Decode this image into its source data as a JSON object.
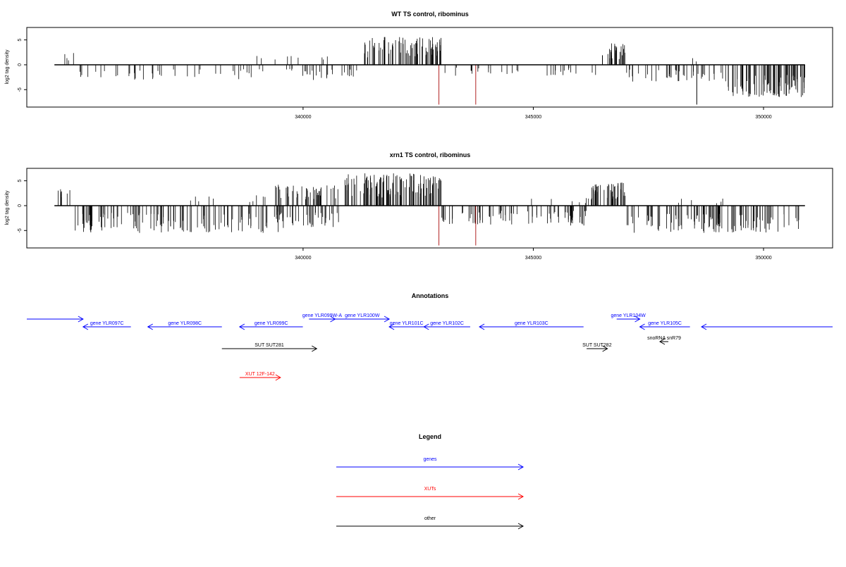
{
  "chart_data": [
    {
      "type": "bar",
      "title": "WT TS control, ribominus",
      "ylabel": "log2 tag density",
      "xlabel": "",
      "xlim": [
        334000,
        351500
      ],
      "ylim": [
        -8.5,
        7.5
      ],
      "x_ticks": [
        340000,
        345000,
        350000
      ],
      "y_ticks": [
        -5,
        0,
        5
      ],
      "seed": 11,
      "blocks": [
        {
          "x0": 334800,
          "x1": 335100,
          "sign": 1,
          "amp": 2.6,
          "n": 4
        },
        {
          "x0": 335000,
          "x1": 339800,
          "sign": -1,
          "amp": 3.0,
          "n": 42
        },
        {
          "x0": 338800,
          "x1": 340600,
          "sign": 1,
          "amp": 2.2,
          "n": 9
        },
        {
          "x0": 339700,
          "x1": 340600,
          "sign": -1,
          "amp": 3.2,
          "n": 16
        },
        {
          "x0": 340400,
          "x1": 341300,
          "sign": -1,
          "amp": 2.8,
          "n": 10
        },
        {
          "x0": 341300,
          "x1": 343000,
          "sign": 1,
          "amp": 5.6,
          "n": 75
        },
        {
          "x0": 343000,
          "x1": 346500,
          "sign": -1,
          "amp": 2.2,
          "n": 30
        },
        {
          "x0": 346500,
          "x1": 347000,
          "sign": 1,
          "amp": 4.3,
          "n": 28
        },
        {
          "x0": 347000,
          "x1": 349200,
          "sign": -1,
          "amp": 3.4,
          "n": 40
        },
        {
          "x0": 348400,
          "x1": 348700,
          "sign": 1,
          "amp": 1.8,
          "n": 2
        },
        {
          "x0": 349200,
          "x1": 350900,
          "sign": -1,
          "amp": 6.5,
          "n": 90
        }
      ],
      "spikes": [
        {
          "x": 342950,
          "value": -8.0
        },
        {
          "x": 343750,
          "value": -8.0
        },
        {
          "x": 348550,
          "value": -8.0
        }
      ],
      "spike_color": "#b22222",
      "bar_color": "#000000"
    },
    {
      "type": "bar",
      "title": "xrn1 TS control, ribominus",
      "ylabel": "log2 tag density",
      "xlabel": "",
      "xlim": [
        334000,
        351500
      ],
      "ylim": [
        -8.5,
        7.5
      ],
      "x_ticks": [
        340000,
        345000,
        350000
      ],
      "y_ticks": [
        -5,
        0,
        5
      ],
      "seed": 23,
      "blocks": [
        {
          "x0": 334650,
          "x1": 335050,
          "sign": 1,
          "amp": 3.5,
          "n": 10
        },
        {
          "x0": 335050,
          "x1": 339500,
          "sign": -1,
          "amp": 5.5,
          "n": 120
        },
        {
          "x0": 337500,
          "x1": 339400,
          "sign": 1,
          "amp": 2.3,
          "n": 10
        },
        {
          "x0": 339400,
          "x1": 340900,
          "sign": 1,
          "amp": 4.2,
          "n": 45
        },
        {
          "x0": 339400,
          "x1": 340900,
          "sign": -1,
          "amp": 4.5,
          "n": 40
        },
        {
          "x0": 340900,
          "x1": 343000,
          "sign": 1,
          "amp": 6.5,
          "n": 120
        },
        {
          "x0": 343000,
          "x1": 346200,
          "sign": -1,
          "amp": 4.0,
          "n": 80
        },
        {
          "x0": 344500,
          "x1": 346300,
          "sign": 1,
          "amp": 1.6,
          "n": 8
        },
        {
          "x0": 346200,
          "x1": 347000,
          "sign": 1,
          "amp": 4.8,
          "n": 45
        },
        {
          "x0": 347000,
          "x1": 350900,
          "sign": -1,
          "amp": 5.5,
          "n": 110
        },
        {
          "x0": 348000,
          "x1": 349500,
          "sign": 1,
          "amp": 1.5,
          "n": 6
        }
      ],
      "spikes": [
        {
          "x": 342950,
          "value": -8.0
        },
        {
          "x": 343750,
          "value": -8.0
        }
      ],
      "spike_color": "#b22222",
      "bar_color": "#000000"
    }
  ],
  "annotations": {
    "title": "Annotations",
    "colors": {
      "gene": "#0000ff",
      "xut": "#ff0000",
      "other": "#000000"
    },
    "features": [
      {
        "label": "",
        "x0": 33800,
        "x1": 34530,
        "row": 0,
        "strand": "+",
        "kind": "gene"
      },
      {
        "label": "gene YLR097C",
        "x0": 34530,
        "x1": 35150,
        "row": 1,
        "strand": "-",
        "kind": "gene"
      },
      {
        "label": "gene YLR098C",
        "x0": 35370,
        "x1": 36330,
        "row": 1,
        "strand": "-",
        "kind": "gene"
      },
      {
        "label": "gene YLR099C",
        "x0": 36560,
        "x1": 37380,
        "row": 1,
        "strand": "-",
        "kind": "gene"
      },
      {
        "label": "gene YLR099W-A",
        "x0": 37460,
        "x1": 37800,
        "row": 0,
        "strand": "+",
        "kind": "gene"
      },
      {
        "label": "gene YLR100W",
        "x0": 37800,
        "x1": 38500,
        "row": 0,
        "strand": "+",
        "kind": "gene"
      },
      {
        "label": "gene YLR101C",
        "x0": 38500,
        "x1": 38950,
        "row": 1,
        "strand": "-",
        "kind": "gene"
      },
      {
        "label": "gene YLR102C",
        "x0": 38950,
        "x1": 39550,
        "row": 1,
        "strand": "-",
        "kind": "gene"
      },
      {
        "label": "gene YLR103C",
        "x0": 39670,
        "x1": 41020,
        "row": 1,
        "strand": "-",
        "kind": "gene"
      },
      {
        "label": "gene YLR104W",
        "x0": 41450,
        "x1": 41750,
        "row": 0,
        "strand": "+",
        "kind": "gene"
      },
      {
        "label": "gene YLR105C",
        "x0": 41750,
        "x1": 42400,
        "row": 1,
        "strand": "-",
        "kind": "gene"
      },
      {
        "label": "",
        "x0": 42550,
        "x1": 44250,
        "row": 1,
        "strand": "-",
        "kind": "gene"
      },
      {
        "label": "SUT SUT281",
        "x0": 36330,
        "x1": 37560,
        "row": 2,
        "strand": "+",
        "kind": "other"
      },
      {
        "label": "SUT SUT282",
        "x0": 41060,
        "x1": 41330,
        "row": 2,
        "strand": "+",
        "kind": "other"
      },
      {
        "label": "snoRNA snR79",
        "x0": 42010,
        "x1": 42120,
        "row": 3,
        "strand": "-",
        "kind": "other",
        "label_dx": 0
      },
      {
        "label": "XUT 12F-142",
        "x0": 36560,
        "x1": 37090,
        "row": 4,
        "strand": "+",
        "kind": "xut"
      }
    ]
  },
  "legend": {
    "title": "Legend",
    "items": [
      {
        "label": "genes",
        "color": "#0000ff"
      },
      {
        "label": "XUTs",
        "color": "#ff0000"
      },
      {
        "label": "other",
        "color": "#000000"
      }
    ]
  }
}
